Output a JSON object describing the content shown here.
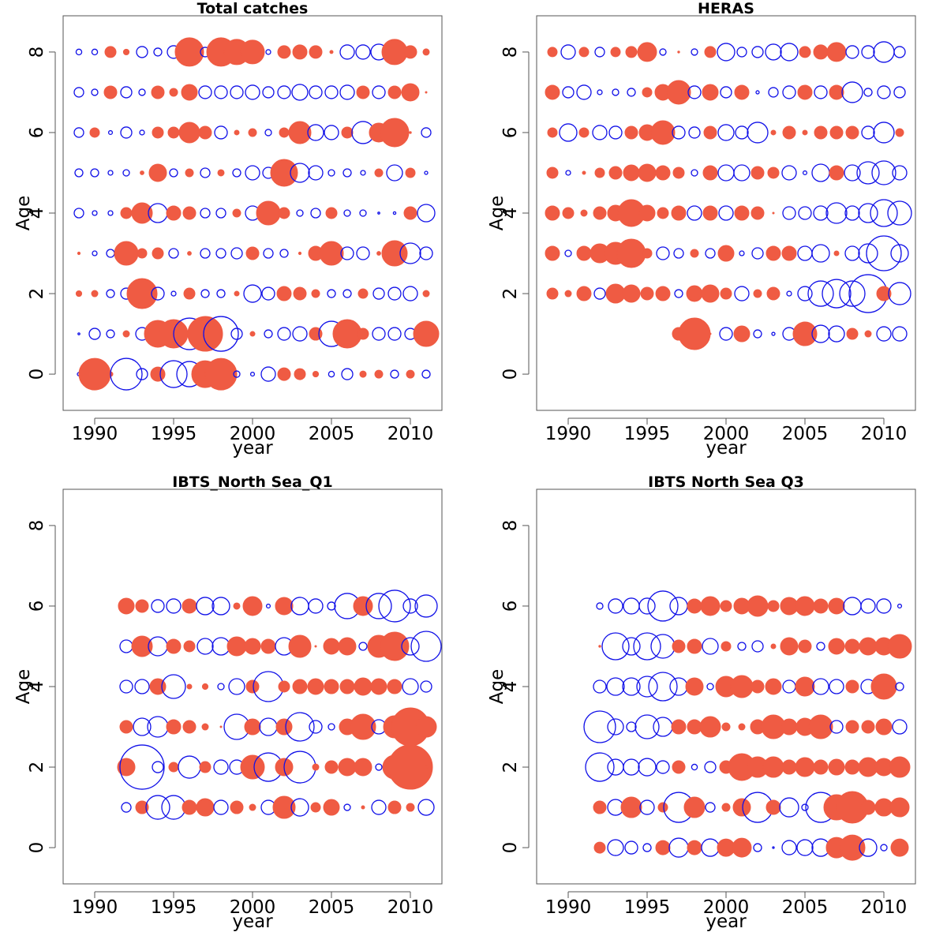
{
  "colors": {
    "positive": "#ef5b43",
    "negative": "#1010e8",
    "frame": "#555555"
  },
  "chart_data": [
    {
      "type": "scatter",
      "title": "Total catches",
      "xlabel": "year",
      "ylabel": "Age",
      "xlim": [
        1988,
        2012
      ],
      "ylim": [
        -0.9,
        8.9
      ],
      "x_ticks": [
        "1990",
        "1995",
        "2000",
        "2005",
        "2010"
      ],
      "y_ticks": [
        "0",
        "2",
        "4",
        "6",
        "8"
      ],
      "legend": "none",
      "years": [
        1989,
        1990,
        1991,
        1992,
        1993,
        1994,
        1995,
        1996,
        1997,
        1998,
        1999,
        2000,
        2001,
        2002,
        2003,
        2004,
        2005,
        2006,
        2007,
        2008,
        2009,
        2010,
        2011
      ],
      "residuals": {
        "0": [
          -0.1,
          1.0,
          0.15,
          -1.0,
          -0.35,
          0.45,
          -0.85,
          -0.8,
          0.85,
          1.0,
          -0.2,
          -0.12,
          -0.45,
          0.4,
          0.35,
          0.18,
          -0.18,
          -0.35,
          0.2,
          0.25,
          -0.25,
          0.25,
          -0.25
        ],
        "1": [
          -0.06,
          -0.35,
          -0.25,
          0.2,
          -0.4,
          0.85,
          0.9,
          -1.0,
          1.1,
          -1.1,
          -0.35,
          0.15,
          -0.25,
          -0.4,
          -0.45,
          0.4,
          -0.8,
          0.9,
          0.35,
          -0.4,
          -0.4,
          -0.35,
          0.8
        ],
        "2": [
          0.18,
          0.2,
          -0.25,
          -0.35,
          0.95,
          -0.4,
          -0.15,
          0.35,
          -0.25,
          -0.25,
          0.15,
          -0.55,
          -0.4,
          0.45,
          0.4,
          0.25,
          -0.25,
          -0.25,
          0.3,
          -0.35,
          -0.4,
          -0.45,
          0.2
        ],
        "3": [
          0.08,
          -0.15,
          -0.25,
          0.75,
          0.3,
          0.35,
          -0.3,
          0.12,
          -0.3,
          -0.3,
          -0.35,
          0.4,
          -0.3,
          -0.25,
          0.08,
          0.45,
          0.75,
          -0.4,
          -0.4,
          0.12,
          0.8,
          -0.65,
          -0.4
        ],
        "4": [
          -0.3,
          -0.15,
          -0.15,
          0.35,
          0.65,
          -0.6,
          0.45,
          0.4,
          -0.3,
          -0.3,
          0.25,
          -0.45,
          0.75,
          0.35,
          -0.2,
          -0.3,
          0.35,
          -0.2,
          -0.2,
          -0.06,
          -0.08,
          0.4,
          -0.55
        ],
        "5": [
          -0.25,
          -0.25,
          -0.15,
          -0.2,
          0.12,
          0.55,
          -0.25,
          0.25,
          -0.3,
          0.2,
          -0.25,
          -0.45,
          -0.35,
          0.85,
          -0.6,
          -0.45,
          -0.2,
          -0.25,
          -0.15,
          0.25,
          -0.5,
          0.3,
          -0.1
        ],
        "6": [
          -0.3,
          0.3,
          -0.12,
          -0.35,
          -0.15,
          0.35,
          0.35,
          0.65,
          0.4,
          -0.4,
          0.15,
          0.25,
          -0.2,
          0.3,
          0.7,
          -0.5,
          -0.45,
          0.35,
          -0.7,
          0.6,
          0.9,
          0.06,
          -0.3
        ],
        "7": [
          -0.3,
          -0.2,
          0.4,
          -0.35,
          -0.2,
          0.4,
          0.25,
          0.5,
          -0.4,
          -0.4,
          -0.4,
          -0.45,
          -0.35,
          -0.4,
          -0.5,
          -0.4,
          -0.4,
          -0.45,
          0.4,
          -0.4,
          0.4,
          0.55,
          0.05
        ],
        "8": [
          -0.18,
          -0.18,
          0.35,
          0.18,
          -0.35,
          -0.25,
          -0.4,
          0.9,
          -0.3,
          0.9,
          0.8,
          0.75,
          -0.15,
          0.4,
          0.45,
          0.4,
          0.1,
          -0.45,
          -0.45,
          -0.5,
          0.8,
          0.4,
          0.2
        ]
      }
    },
    {
      "type": "scatter",
      "title": "HERAS",
      "xlabel": "year",
      "ylabel": "Age",
      "xlim": [
        1988,
        2012
      ],
      "ylim": [
        -0.9,
        8.9
      ],
      "x_ticks": [
        "1990",
        "1995",
        "2000",
        "2005",
        "2010"
      ],
      "y_ticks": [
        "0",
        "2",
        "4",
        "6",
        "8"
      ],
      "legend": "none",
      "years": [
        1989,
        1990,
        1991,
        1992,
        1993,
        1994,
        1995,
        1996,
        1997,
        1998,
        1999,
        2000,
        2001,
        2002,
        2003,
        2004,
        2005,
        2006,
        2007,
        2008,
        2009,
        2010,
        2011
      ],
      "residuals": {
        "1": [
          null,
          null,
          null,
          null,
          null,
          null,
          null,
          null,
          0.4,
          1.0,
          0.05,
          -0.4,
          0.5,
          -0.25,
          -0.1,
          -0.4,
          0.75,
          -0.55,
          -0.5,
          0.35,
          0.2,
          -0.45,
          -0.45
        ],
        "2": [
          0.35,
          0.2,
          0.45,
          -0.35,
          0.6,
          0.55,
          0.4,
          0.45,
          -0.25,
          0.5,
          0.55,
          0.35,
          -0.45,
          0.25,
          0.4,
          -0.15,
          -0.45,
          -0.8,
          -0.9,
          -0.8,
          -1.2,
          0.45,
          -0.7
        ],
        "3": [
          0.45,
          -0.2,
          0.45,
          0.6,
          0.7,
          0.9,
          0.3,
          -0.4,
          -0.3,
          0.25,
          -0.3,
          0.5,
          -0.15,
          -0.35,
          0.45,
          0.45,
          -0.45,
          -0.55,
          0.15,
          -0.45,
          -0.6,
          -1.1,
          -0.55
        ],
        "4": [
          0.45,
          0.35,
          0.2,
          0.4,
          0.5,
          0.85,
          0.5,
          0.35,
          0.45,
          -0.45,
          0.45,
          -0.45,
          0.45,
          0.4,
          0.05,
          -0.4,
          -0.4,
          -0.45,
          -0.65,
          -0.45,
          -0.6,
          -0.85,
          -0.75
        ],
        "5": [
          0.35,
          -0.15,
          0.1,
          0.3,
          0.4,
          0.5,
          0.55,
          0.45,
          0.35,
          -0.2,
          0.45,
          -0.5,
          -0.5,
          0.4,
          0.35,
          -0.45,
          -0.12,
          -0.55,
          0.45,
          -0.5,
          -0.7,
          -0.75,
          -0.45
        ],
        "6": [
          0.3,
          -0.55,
          0.3,
          -0.45,
          -0.4,
          0.4,
          0.5,
          0.75,
          -0.4,
          -0.35,
          0.4,
          -0.5,
          -0.4,
          -0.65,
          0.15,
          0.4,
          0.15,
          0.4,
          0.4,
          0.4,
          -0.4,
          -0.65,
          0.25
        ],
        "7": [
          0.45,
          -0.35,
          -0.45,
          -0.15,
          -0.2,
          -0.25,
          0.3,
          0.5,
          0.75,
          -0.4,
          0.5,
          -0.35,
          0.45,
          -0.1,
          -0.3,
          -0.4,
          0.45,
          -0.4,
          0.45,
          -0.65,
          -0.25,
          -0.4,
          -0.35
        ],
        "8": [
          0.3,
          -0.45,
          0.3,
          -0.3,
          0.3,
          0.35,
          0.6,
          -0.2,
          0.06,
          -0.2,
          0.35,
          -0.55,
          -0.3,
          -0.35,
          -0.5,
          -0.55,
          0.35,
          0.45,
          0.6,
          -0.4,
          -0.4,
          -0.65,
          -0.35
        ]
      }
    },
    {
      "type": "scatter",
      "title": "IBTS_North Sea_Q1",
      "xlabel": "",
      "ylabel": "Age",
      "xlim": [
        1988,
        2012
      ],
      "ylim": [
        -0.9,
        8.9
      ],
      "x_ticks": [
        "1990",
        "1995",
        "2000",
        "2005",
        "2010"
      ],
      "y_ticks": [
        "0",
        "2",
        "4",
        "6",
        "8"
      ],
      "legend": "none",
      "years": [
        1992,
        1993,
        1994,
        1995,
        1996,
        1997,
        1998,
        1999,
        2000,
        2001,
        2002,
        2003,
        2004,
        2005,
        2006,
        2007,
        2008,
        2009,
        2010,
        2011
      ],
      "residuals": {
        "1": [
          -0.3,
          0.4,
          -0.75,
          -0.75,
          0.45,
          0.55,
          -0.45,
          0.4,
          0.2,
          -0.45,
          0.7,
          -0.55,
          0.3,
          0.5,
          -0.2,
          0.1,
          -0.45,
          0.4,
          0.25,
          -0.5
        ],
        "2": [
          0.55,
          -1.4,
          -0.35,
          0.3,
          -0.7,
          0.35,
          -0.45,
          -0.45,
          0.75,
          -0.9,
          0.55,
          -1.0,
          0.2,
          0.4,
          0.55,
          0.55,
          -0.2,
          0.75,
          1.4,
          0.1
        ],
        "3": [
          0.4,
          -0.55,
          -0.65,
          0.45,
          0.4,
          0.2,
          0.05,
          -0.8,
          0.5,
          -0.55,
          0.5,
          -0.9,
          -0.4,
          -0.2,
          0.5,
          0.8,
          -0.45,
          0.7,
          1.2,
          0.65
        ],
        "4": [
          -0.4,
          -0.45,
          0.5,
          -0.75,
          0.15,
          0.18,
          -0.2,
          -0.5,
          0.4,
          -0.95,
          0.35,
          0.45,
          0.5,
          0.45,
          0.45,
          0.55,
          0.5,
          0.45,
          -0.5,
          -0.35
        ],
        "5": [
          -0.4,
          0.65,
          -0.6,
          0.45,
          0.35,
          -0.5,
          -0.55,
          0.6,
          0.5,
          0.45,
          -0.55,
          0.7,
          0.05,
          0.5,
          0.55,
          -0.25,
          0.7,
          0.9,
          -0.55,
          -0.95
        ],
        "6": [
          0.5,
          0.4,
          -0.4,
          -0.45,
          0.45,
          -0.55,
          -0.55,
          0.2,
          0.6,
          -0.12,
          0.55,
          -0.55,
          -0.45,
          -0.25,
          -0.8,
          0.6,
          -0.8,
          -1.0,
          -0.45,
          -0.7
        ]
      }
    },
    {
      "type": "scatter",
      "title": "IBTS North Sea Q3",
      "xlabel": "year",
      "ylabel": "Age",
      "xlim": [
        1988,
        2012
      ],
      "ylim": [
        -0.9,
        8.9
      ],
      "x_ticks": [
        "1990",
        "1995",
        "2000",
        "2005",
        "2010"
      ],
      "y_ticks": [
        "0",
        "2",
        "4",
        "6",
        "8"
      ],
      "legend": "none",
      "years": [
        1992,
        1993,
        1994,
        1995,
        1996,
        1997,
        1998,
        1999,
        2000,
        2001,
        2002,
        2003,
        2004,
        2005,
        2006,
        2007,
        2008,
        2009,
        2010,
        2011
      ],
      "residuals": {
        "0": [
          0.35,
          -0.5,
          -0.4,
          -0.25,
          0.45,
          -0.6,
          0.45,
          -0.55,
          0.55,
          0.6,
          -0.25,
          -0.05,
          -0.45,
          -0.5,
          -0.55,
          0.65,
          0.8,
          -0.55,
          -0.2,
          0.55
        ],
        "1": [
          0.4,
          -0.5,
          0.65,
          -0.45,
          0.3,
          -0.95,
          0.65,
          -0.3,
          0.25,
          0.55,
          -0.95,
          0.45,
          -0.6,
          -0.2,
          -0.95,
          0.8,
          1.0,
          0.45,
          0.55,
          0.6
        ],
        "2": [
          -0.9,
          -0.5,
          -0.5,
          -0.55,
          -0.4,
          0.4,
          -0.18,
          -0.35,
          0.4,
          0.85,
          0.65,
          0.65,
          0.45,
          0.6,
          0.45,
          0.5,
          0.45,
          0.6,
          0.55,
          0.65
        ],
        "3": [
          -1.0,
          -0.5,
          -0.3,
          -0.75,
          -0.6,
          0.45,
          0.45,
          0.65,
          0.25,
          0.2,
          0.45,
          0.75,
          0.5,
          0.55,
          0.75,
          -0.4,
          0.4,
          0.4,
          0.5,
          -0.45
        ],
        "4": [
          -0.4,
          -0.55,
          -0.55,
          -0.65,
          -0.9,
          -0.55,
          0.55,
          -0.2,
          0.65,
          0.7,
          0.4,
          0.5,
          -0.4,
          0.6,
          -0.5,
          -0.45,
          0.4,
          -0.45,
          0.8,
          -0.25
        ],
        "5": [
          0.06,
          -0.85,
          -0.55,
          -0.85,
          -0.75,
          0.4,
          0.45,
          -0.5,
          0.3,
          -0.25,
          -0.35,
          0.15,
          0.55,
          0.4,
          -0.25,
          0.5,
          0.45,
          0.55,
          0.55,
          0.75
        ],
        "6": [
          -0.2,
          -0.45,
          -0.5,
          -0.5,
          -0.95,
          -0.55,
          0.45,
          0.6,
          0.35,
          0.5,
          0.65,
          0.35,
          0.55,
          0.6,
          0.45,
          0.5,
          -0.55,
          -0.45,
          -0.45,
          -0.12
        ]
      }
    }
  ]
}
